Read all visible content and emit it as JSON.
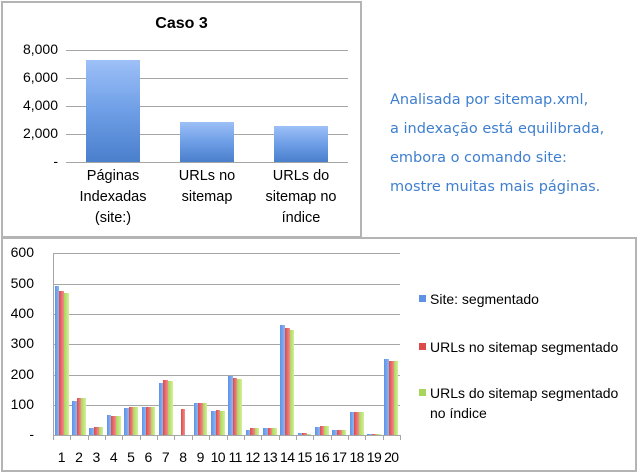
{
  "annotation": {
    "lines": [
      "Analisada por sitemap.xml,",
      "a indexação está equilibrada,",
      "embora o comando site:",
      "mostre muitas mais páginas."
    ]
  },
  "colors": {
    "series_blue": "#5e92e6",
    "series_red": "#dc4a4a",
    "series_green": "#a8d65a",
    "annotation_text": "#3f7fcf",
    "gridline": "#a6a6a6"
  },
  "chart_data": [
    {
      "type": "bar",
      "title": "Caso 3",
      "categories": [
        "Páginas Indexadas (site:)",
        "URLs no sitemap",
        "URLs do sitemap no índice"
      ],
      "category_lines": [
        [
          "Páginas",
          "Indexadas",
          "(site:)"
        ],
        [
          "URLs no",
          "sitemap"
        ],
        [
          "URLs do",
          "sitemap no",
          "índice"
        ]
      ],
      "values": [
        7290,
        2870,
        2590
      ],
      "xlabel": "",
      "ylabel": "",
      "ylim": [
        0,
        8000
      ],
      "yticks": [
        0,
        2000,
        4000,
        6000,
        8000
      ],
      "ytick_labels": [
        "-",
        "2,000",
        "4,000",
        "6,000",
        "8,000"
      ],
      "grid": true,
      "legend": null
    },
    {
      "type": "bar",
      "title": "",
      "categories": [
        "1",
        "2",
        "3",
        "4",
        "5",
        "6",
        "7",
        "8",
        "9",
        "10",
        "11",
        "12",
        "13",
        "14",
        "15",
        "16",
        "17",
        "18",
        "19",
        "20"
      ],
      "series": [
        {
          "name": "Site: segmentado",
          "color": "#5e92e6",
          "values": [
            493,
            114,
            23,
            66,
            91,
            94,
            171,
            1,
            108,
            79,
            195,
            19,
            23,
            365,
            7,
            26,
            16,
            77,
            5,
            250
          ]
        },
        {
          "name": "URLs no sitemap segmentado",
          "color": "#dc4a4a",
          "values": [
            475,
            123,
            27,
            65,
            94,
            94,
            181,
            88,
            107,
            82,
            189,
            24,
            25,
            353,
            7,
            32,
            18,
            77,
            5,
            245
          ]
        },
        {
          "name": "URLs do sitemap segmentado no índice",
          "color": "#a8d65a",
          "values": [
            469,
            122,
            26,
            64,
            94,
            92,
            178,
            0,
            105,
            80,
            187,
            23,
            24,
            347,
            5,
            30,
            16,
            77,
            4,
            244
          ]
        }
      ],
      "legend_lines": [
        [
          "Site: segmentado"
        ],
        [
          "URLs no sitemap segmentado"
        ],
        [
          "URLs do sitemap segmentado",
          "no índice"
        ]
      ],
      "xlabel": "",
      "ylabel": "",
      "ylim": [
        0,
        600
      ],
      "yticks": [
        0,
        100,
        200,
        300,
        400,
        500,
        600
      ],
      "ytick_labels": [
        "-",
        "100",
        "200",
        "300",
        "400",
        "500",
        "600"
      ],
      "grid": true,
      "legend_position": "right"
    }
  ]
}
